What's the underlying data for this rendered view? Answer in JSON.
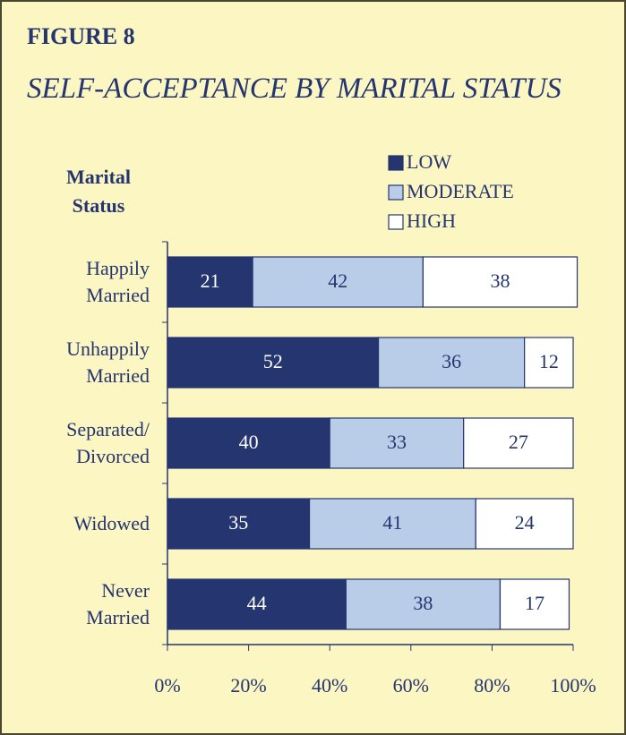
{
  "chart_data": {
    "type": "stacked-bar-horizontal",
    "title": "FIGURE 8",
    "subtitle": "SELF-ACCEPTANCE BY MARITAL STATUS",
    "y_label": "Marital Status",
    "categories": [
      "Happily Married",
      "Unhappily Married",
      "Separated/ Divorced",
      "Widowed",
      "Never Married"
    ],
    "series": [
      {
        "name": "LOW",
        "color": "#253570",
        "values": [
          21,
          52,
          40,
          35,
          44
        ]
      },
      {
        "name": "MODERATE",
        "color": "#b9cde9",
        "values": [
          42,
          36,
          33,
          41,
          38
        ]
      },
      {
        "name": "HIGH",
        "color": "#ffffff",
        "values": [
          38,
          12,
          27,
          24,
          17
        ]
      }
    ],
    "xlim": [
      0,
      100
    ],
    "xticks": [
      {
        "value": 0,
        "label": "0%"
      },
      {
        "value": 20,
        "label": "20%"
      },
      {
        "value": 40,
        "label": "40%"
      },
      {
        "value": 60,
        "label": "60%"
      },
      {
        "value": 80,
        "label": "80%"
      },
      {
        "value": 100,
        "label": "100%"
      }
    ],
    "legend": "top-right"
  }
}
